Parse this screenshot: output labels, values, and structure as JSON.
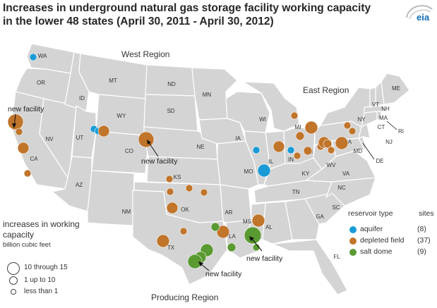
{
  "title_line1": "Increases in underground natural gas storage facility working capacity",
  "title_line2": "in the lower 48 states (April 30, 2011 - April 30, 2012)",
  "logo_text": "eia",
  "colors": {
    "aquifer": "#1a9ad6",
    "depleted_field": "#c0752b",
    "salt_dome": "#5a9a32",
    "state_fill": "#d4d4d4",
    "state_border": "#ffffff"
  },
  "regions": {
    "west": "West Region",
    "east": "East Region",
    "producing": "Producing Region"
  },
  "states": [
    "WA",
    "OR",
    "MT",
    "ND",
    "MN",
    "ID",
    "SD",
    "WY",
    "NV",
    "UT",
    "CO",
    "NE",
    "CA",
    "AZ",
    "KS",
    "IA",
    "WI",
    "MI",
    "IL",
    "IN",
    "OH",
    "MO",
    "KY",
    "WV",
    "VA",
    "PA",
    "NY",
    "VT",
    "NH",
    "MA",
    "ME",
    "CT",
    "RI",
    "NJ",
    "MD",
    "DE",
    "TN",
    "NC",
    "SC",
    "GA",
    "FL",
    "AL",
    "MS",
    "AR",
    "LA",
    "OK",
    "TX",
    "NM"
  ],
  "annotations": [
    "new facility",
    "new facility",
    "new facility",
    "new facility"
  ],
  "size_legend": {
    "title": "increases in working capacity",
    "unit": "billion cubic feet",
    "rows": [
      "10 through 15",
      "1 up to 10",
      "less than 1"
    ]
  },
  "reservoir_legend": {
    "type_header": "reservoir type",
    "sites_header": "sites",
    "rows": [
      {
        "name": "aquifer",
        "sites": "(8)",
        "color": "#1a9ad6"
      },
      {
        "name": "depleted field",
        "sites": "(37)",
        "color": "#c0752b"
      },
      {
        "name": "salt dome",
        "sites": "(9)",
        "color": "#5a9a32"
      }
    ]
  }
}
